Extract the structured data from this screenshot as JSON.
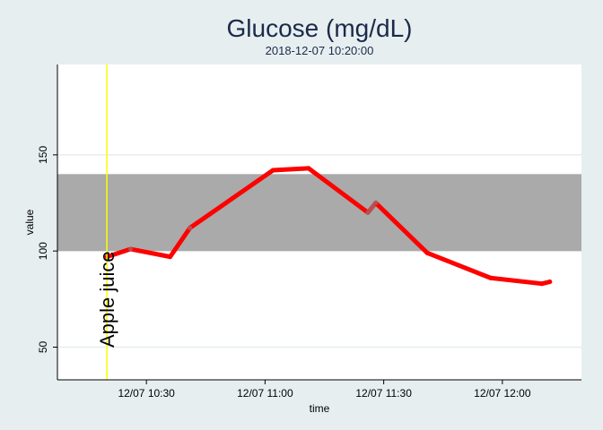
{
  "chart_data": {
    "type": "line",
    "title": "Glucose (mg/dL)",
    "subtitle": "2018-12-07 10:20:00",
    "xlabel": "time",
    "ylabel": "value",
    "xlim": [
      "2018-12-07 10:07:30",
      "2018-12-07 12:20:00"
    ],
    "ylim": [
      33,
      197
    ],
    "x_ticks": [
      {
        "value": "2018-12-07 10:30:00",
        "label": "12/07 10:30"
      },
      {
        "value": "2018-12-07 11:00:00",
        "label": "12/07 11:00"
      },
      {
        "value": "2018-12-07 11:30:00",
        "label": "12/07 11:30"
      },
      {
        "value": "2018-12-07 12:00:00",
        "label": "12/07 12:00"
      }
    ],
    "y_ticks": [
      50,
      100,
      150
    ],
    "grid": true,
    "target_range": {
      "low": 100,
      "high": 140,
      "color": "#aaaaaa"
    },
    "series": [
      {
        "color": "#ff0000",
        "color_in_range": "#b85050",
        "points": [
          {
            "x": "2018-12-07 10:20:00",
            "y": 97
          },
          {
            "x": "2018-12-07 10:26:00",
            "y": 101
          },
          {
            "x": "2018-12-07 10:36:00",
            "y": 97
          },
          {
            "x": "2018-12-07 10:41:00",
            "y": 112
          },
          {
            "x": "2018-12-07 11:02:00",
            "y": 142
          },
          {
            "x": "2018-12-07 11:11:00",
            "y": 143
          },
          {
            "x": "2018-12-07 11:26:00",
            "y": 120
          },
          {
            "x": "2018-12-07 11:28:00",
            "y": 125
          },
          {
            "x": "2018-12-07 11:41:00",
            "y": 99
          },
          {
            "x": "2018-12-07 11:57:00",
            "y": 86
          },
          {
            "x": "2018-12-07 12:10:00",
            "y": 83
          },
          {
            "x": "2018-12-07 12:12:00",
            "y": 84
          }
        ]
      }
    ],
    "events": [
      {
        "x": "2018-12-07 10:20:00",
        "label": "Apple juice",
        "color": "#ffff00"
      }
    ]
  }
}
